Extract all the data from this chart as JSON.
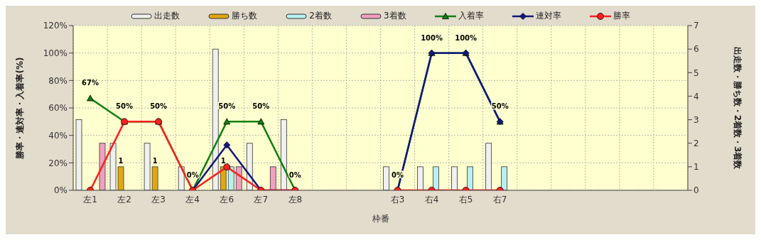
{
  "chart_data": {
    "type": "bar",
    "xlabel": "枠番",
    "ylabel": "勝率・連対率・入着率(%)",
    "y2label": "出走数・勝ち数・2着数・3着数",
    "categories": [
      "左1",
      "左2",
      "左3",
      "左4",
      "左6",
      "左7",
      "左8",
      null,
      null,
      "右3",
      "右4",
      "右5",
      "右7",
      null,
      null,
      null,
      null,
      null
    ],
    "series": [
      {
        "name": "出走数",
        "type": "bar",
        "axis": "y2",
        "color": "#f0f0f0",
        "values": [
          3,
          2,
          2,
          1,
          6,
          2,
          3,
          null,
          null,
          1,
          1,
          1,
          2,
          null,
          null,
          null,
          null,
          null
        ]
      },
      {
        "name": "勝ち数",
        "type": "bar",
        "axis": "y2",
        "color": "#e0a810",
        "values": [
          0,
          1,
          1,
          0,
          1,
          0,
          0,
          null,
          null,
          0,
          0,
          0,
          0,
          null,
          null,
          null,
          null,
          null
        ],
        "value_labels": [
          null,
          "1",
          "1",
          null,
          "1",
          null,
          null,
          null,
          null,
          null,
          null,
          null,
          null,
          null,
          null,
          null,
          null,
          null
        ]
      },
      {
        "name": "2着数",
        "type": "bar",
        "axis": "y2",
        "color": "#b8f0f0",
        "values": [
          0,
          0,
          0,
          0,
          1,
          0,
          0,
          null,
          null,
          0,
          1,
          1,
          1,
          null,
          null,
          null,
          null,
          null
        ]
      },
      {
        "name": "3着数",
        "type": "bar",
        "axis": "y2",
        "color": "#f0a0c0",
        "values": [
          2,
          0,
          0,
          0,
          1,
          1,
          0,
          null,
          null,
          0,
          0,
          0,
          0,
          null,
          null,
          null,
          null,
          null
        ]
      },
      {
        "name": "入着率",
        "type": "line",
        "marker": "triangle",
        "color": "#108010",
        "values": [
          67,
          50,
          50,
          0,
          50,
          50,
          0,
          null,
          null,
          0,
          100,
          100,
          50,
          null,
          null,
          null,
          null,
          null
        ],
        "value_labels": [
          "67%",
          "50%",
          "50%",
          "0%",
          "50%",
          "50%",
          "0%",
          null,
          null,
          "0%",
          "100%",
          "100%",
          "50%",
          null,
          null,
          null,
          null,
          null
        ]
      },
      {
        "name": "連対率",
        "type": "line",
        "marker": "diamond",
        "color": "#101880",
        "values": [
          0,
          null,
          null,
          0,
          33,
          0,
          0,
          null,
          null,
          0,
          100,
          100,
          50,
          null,
          null,
          null,
          null,
          null
        ]
      },
      {
        "name": "勝率",
        "type": "line",
        "marker": "circle",
        "color": "#ff2020",
        "values": [
          0,
          50,
          50,
          0,
          17,
          0,
          0,
          null,
          null,
          0,
          0,
          0,
          0,
          null,
          null,
          null,
          null,
          null
        ]
      }
    ],
    "ylim": [
      0,
      120
    ],
    "yticks": [
      {
        "value": 0,
        "label": "0%"
      },
      {
        "value": 20,
        "label": "20%"
      },
      {
        "value": 40,
        "label": "40%"
      },
      {
        "value": 60,
        "label": "60%"
      },
      {
        "value": 80,
        "label": "80%"
      },
      {
        "value": 100,
        "label": "100%"
      },
      {
        "value": 120,
        "label": "120%"
      }
    ],
    "y2lim": [
      0,
      7
    ],
    "y2ticks": [
      0,
      1,
      2,
      3,
      4,
      5,
      6,
      7
    ],
    "grid": true,
    "legend": "top"
  }
}
